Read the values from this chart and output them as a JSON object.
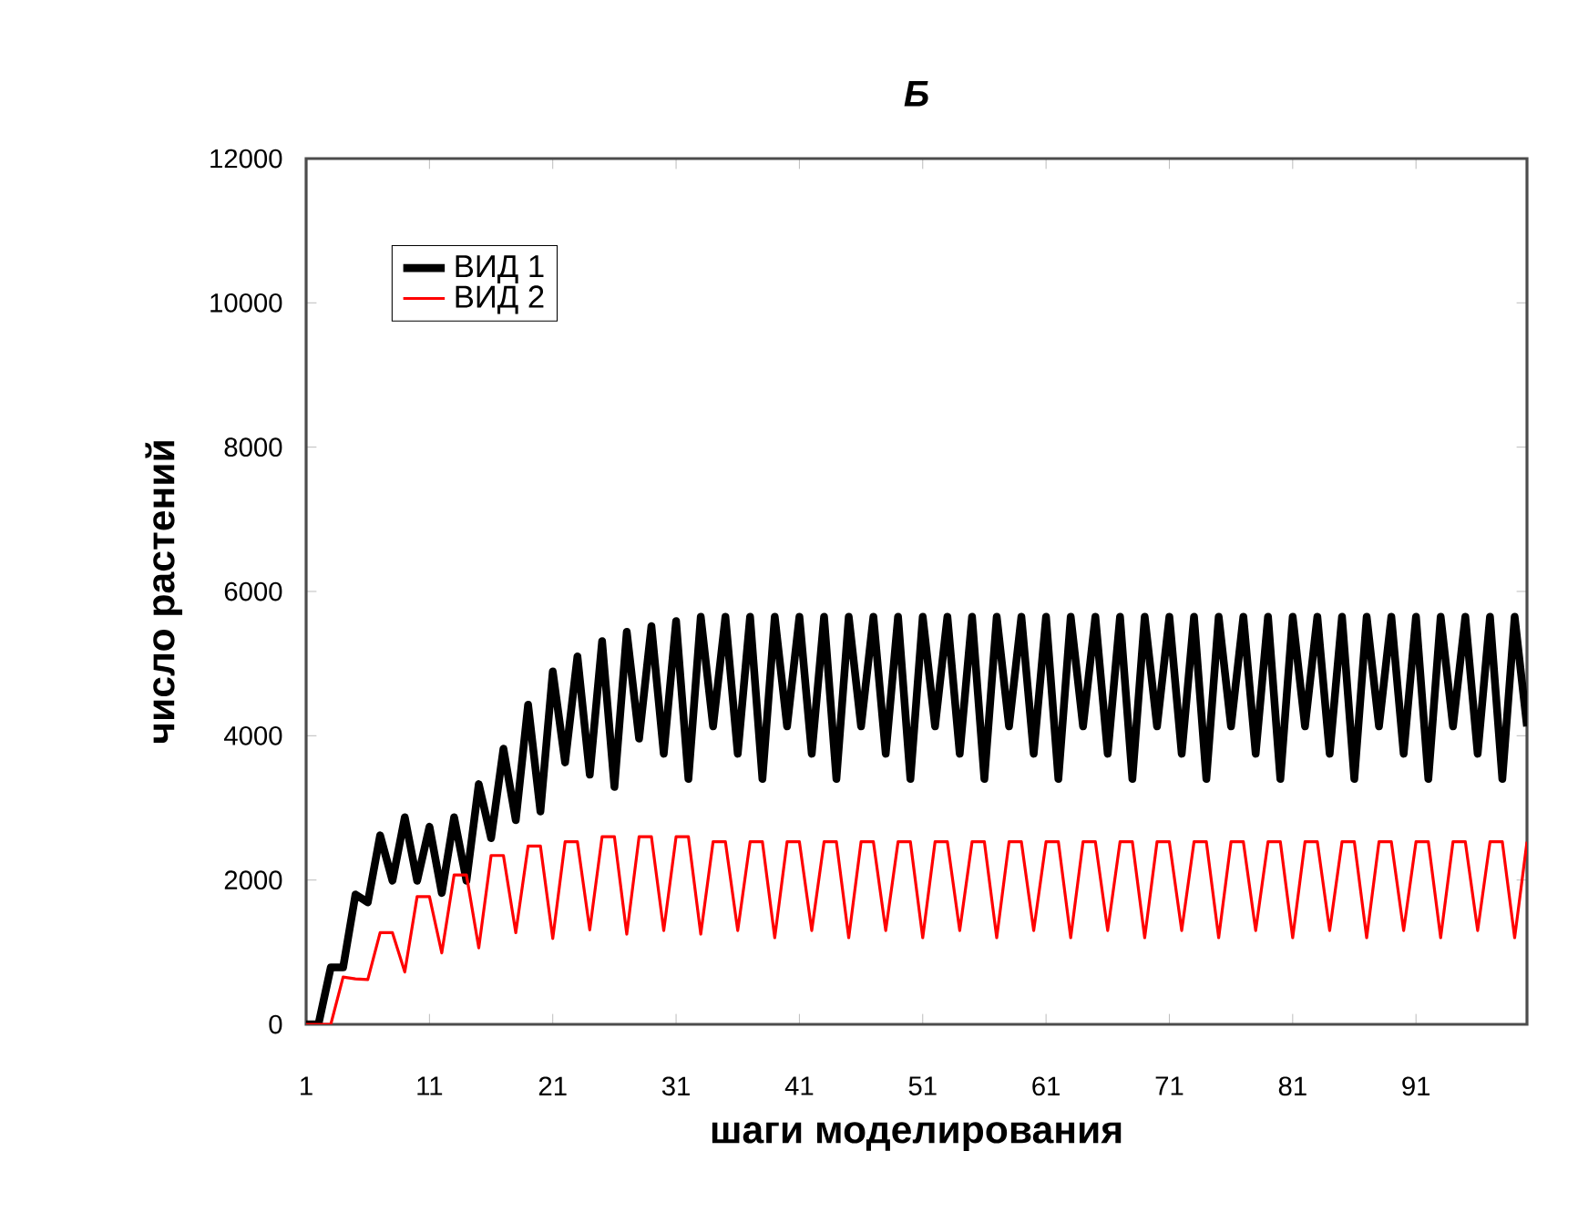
{
  "chart_data": {
    "type": "line",
    "title": "Б",
    "xlabel": "шаги моделирования",
    "ylabel": "число растений",
    "x": [
      1,
      2,
      3,
      4,
      5,
      6,
      7,
      8,
      9,
      10,
      11,
      12,
      13,
      14,
      15,
      16,
      17,
      18,
      19,
      20,
      21,
      22,
      23,
      24,
      25,
      26,
      27,
      28,
      29,
      30,
      31,
      32,
      33,
      34,
      35,
      36,
      37,
      38,
      39,
      40,
      41,
      42,
      43,
      44,
      45,
      46,
      47,
      48,
      49,
      50,
      51,
      52,
      53,
      54,
      55,
      56,
      57,
      58,
      59,
      60,
      61,
      62,
      63,
      64,
      65,
      66,
      67,
      68,
      69,
      70,
      71,
      72,
      73,
      74,
      75,
      76,
      77,
      78,
      79,
      80,
      81,
      82,
      83,
      84,
      85,
      86,
      87,
      88,
      89,
      90,
      91,
      92,
      93,
      94,
      95,
      96,
      97,
      98,
      99,
      100
    ],
    "series": [
      {
        "name": "ВИД 1",
        "color": "#000000",
        "values": [
          0,
          0,
          790,
          790,
          1800,
          1690,
          2620,
          1990,
          2870,
          1990,
          2740,
          1820,
          2870,
          1990,
          3330,
          2580,
          3820,
          2830,
          4430,
          2950,
          4890,
          3630,
          5100,
          3460,
          5310,
          3290,
          5440,
          3960,
          5520,
          3750,
          5590,
          3400,
          5650,
          4130,
          5650,
          3750,
          5650,
          3400,
          5650,
          4130,
          5650,
          3750,
          5650,
          3400,
          5650,
          4130,
          5650,
          3750,
          5650,
          3400,
          5650,
          4130,
          5650,
          3750,
          5650,
          3400,
          5650,
          4130,
          5650,
          3750,
          5650,
          3400,
          5650,
          4130,
          5650,
          3750,
          5650,
          3400,
          5650,
          4130,
          5650,
          3750,
          5650,
          3400,
          5650,
          4130,
          5650,
          3750,
          5650,
          3400,
          5650,
          4130,
          5650,
          3750,
          5650,
          3400,
          5650,
          4130,
          5650,
          3750,
          5650,
          3400,
          5650,
          4130,
          5650,
          3750,
          5650,
          3400,
          5650,
          4130
        ]
      },
      {
        "name": "ВИД 2",
        "color": "#ff0000",
        "values": [
          0,
          0,
          0,
          656,
          630,
          620,
          1270,
          1270,
          725,
          1770,
          1770,
          990,
          2070,
          2070,
          1060,
          2340,
          2340,
          1270,
          2470,
          2470,
          1190,
          2530,
          2530,
          1310,
          2600,
          2600,
          1250,
          2600,
          2600,
          1300,
          2600,
          2600,
          1250,
          2530,
          2530,
          1300,
          2530,
          2530,
          1200,
          2530,
          2530,
          1300,
          2530,
          2530,
          1200,
          2530,
          2530,
          1300,
          2530,
          2530,
          1200,
          2530,
          2530,
          1300,
          2530,
          2530,
          1200,
          2530,
          2530,
          1300,
          2530,
          2530,
          1200,
          2530,
          2530,
          1300,
          2530,
          2530,
          1200,
          2530,
          2530,
          1300,
          2530,
          2530,
          1200,
          2530,
          2530,
          1300,
          2530,
          2530,
          1200,
          2530,
          2530,
          1300,
          2530,
          2530,
          1200,
          2530,
          2530,
          1300,
          2530,
          2530,
          1200,
          2530,
          2530,
          1300,
          2530,
          2530,
          1200,
          2530
        ]
      }
    ],
    "xlim": [
      1,
      100
    ],
    "xticks": [
      1,
      11,
      21,
      31,
      41,
      51,
      61,
      71,
      81,
      91
    ],
    "ylim": [
      0,
      12000
    ],
    "yticks": [
      0,
      2000,
      4000,
      6000,
      8000,
      10000,
      12000
    ],
    "grid": false,
    "legend": "top left",
    "marker": "none",
    "line_style": "solid"
  }
}
